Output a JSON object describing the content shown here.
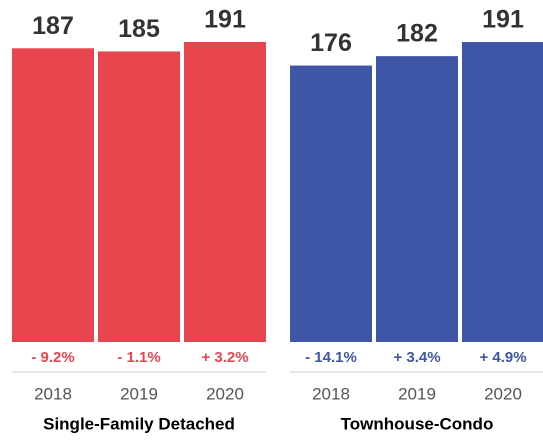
{
  "chart_data": [
    {
      "type": "bar",
      "title": "Single-Family Detached",
      "categories": [
        "2018",
        "2019",
        "2020"
      ],
      "values": [
        187,
        185,
        191
      ],
      "color": "#e8464e",
      "annotations": [
        "- 9.2%",
        "- 1.1%",
        "+ 3.2%"
      ]
    },
    {
      "type": "bar",
      "title": "Townhouse-Condo",
      "categories": [
        "2018",
        "2019",
        "2020"
      ],
      "values": [
        176,
        182,
        191
      ],
      "color": "#3f56a6",
      "annotations": [
        "- 14.1%",
        "+ 3.4%",
        "+ 4.9%"
      ]
    }
  ]
}
